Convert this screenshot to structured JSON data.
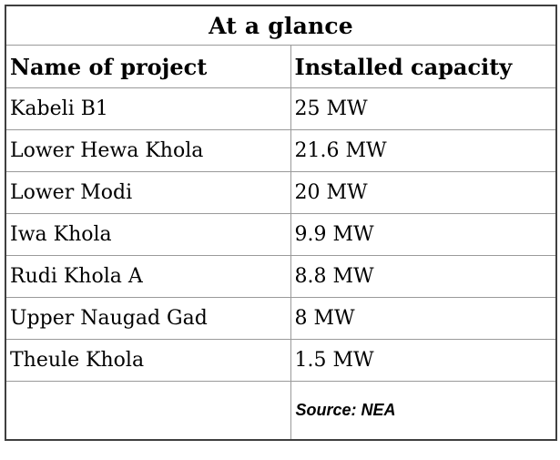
{
  "chart_data": {
    "type": "table",
    "title": "At a glance",
    "columns": [
      "Name of project",
      "Installed capacity"
    ],
    "rows": [
      [
        "Kabeli B1",
        "25 MW"
      ],
      [
        "Lower Hewa Khola",
        "21.6 MW"
      ],
      [
        "Lower Modi",
        "20 MW"
      ],
      [
        "Iwa Khola",
        "9.9 MW"
      ],
      [
        "Rudi Khola A",
        "8.8 MW"
      ],
      [
        "Upper Naugad Gad",
        "8 MW"
      ],
      [
        "Theule Khola",
        "1.5 MW"
      ]
    ],
    "capacity_values_mw": [
      25,
      21.6,
      20,
      9.9,
      8.8,
      8,
      1.5
    ],
    "capacity_unit": "MW",
    "source_note": "Source: NEA",
    "legend_position": "none",
    "grid": true
  },
  "colors": {
    "border_outer": "#3f3f3f",
    "border_inner": "#9a9a9a",
    "text": "#000000",
    "background": "#ffffff"
  }
}
